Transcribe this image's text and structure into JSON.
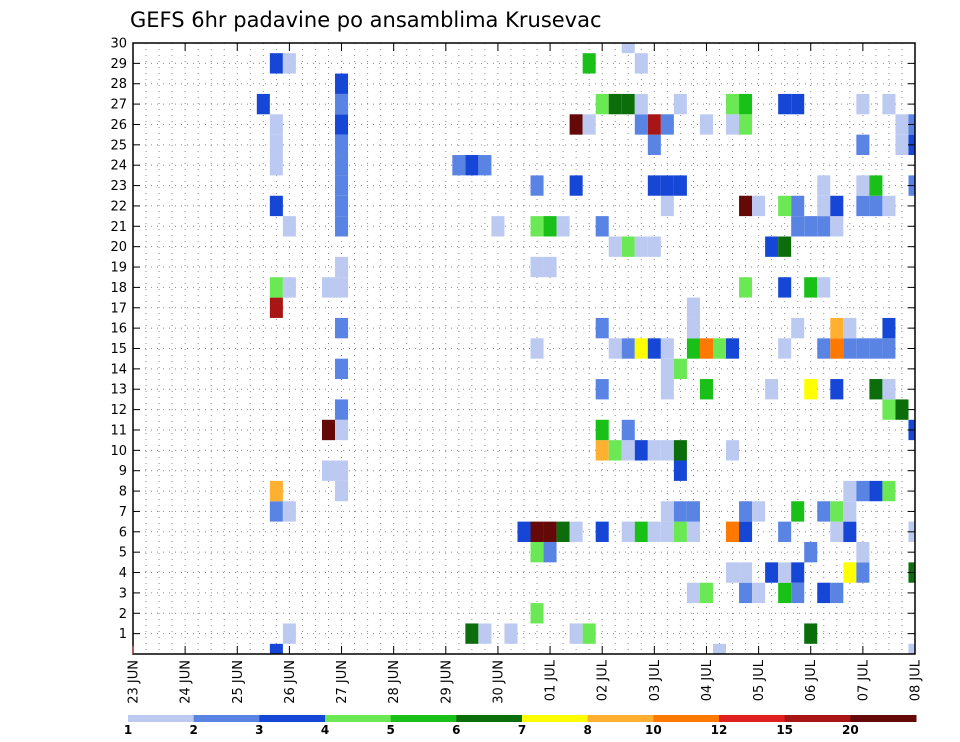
{
  "chart_data": {
    "type": "heatmap",
    "title": "GEFS 6hr padavine po ansamblima Krusevac",
    "xlabel": "",
    "ylabel": "",
    "x_range": [
      0,
      60
    ],
    "y_range": [
      0,
      30
    ],
    "steps_per_day": 4,
    "x_tick_labels": [
      "23 JUN",
      "24 JUN",
      "25 JUN",
      "26 JUN",
      "27 JUN",
      "28 JUN",
      "29 JUN",
      "30 JUN",
      "01 JUL",
      "02 JUL",
      "03 JUL",
      "04 JUL",
      "05 JUL",
      "06 JUL",
      "07 JUL",
      "08 JUL"
    ],
    "y_ticks": [
      1,
      2,
      3,
      4,
      5,
      6,
      7,
      8,
      9,
      10,
      11,
      12,
      13,
      14,
      15,
      16,
      17,
      18,
      19,
      20,
      21,
      22,
      23,
      24,
      25,
      26,
      27,
      28,
      29,
      30
    ],
    "grid": true,
    "legend": {
      "position": "bottom",
      "colors": [
        "#bccaf2",
        "#5a84e4",
        "#1646d6",
        "#6ae954",
        "#18c018",
        "#0b6e0b",
        "#ffff00",
        "#ffb030",
        "#ff7800",
        "#e02020",
        "#a81515",
        "#640808"
      ],
      "labels": [
        "1",
        "2",
        "3",
        "4",
        "5",
        "6",
        "7",
        "8",
        "10",
        "12",
        "15",
        "20"
      ]
    },
    "cells": [
      [
        11,
        0,
        3
      ],
      [
        45,
        0,
        1
      ],
      [
        60,
        0,
        1
      ],
      [
        12,
        1,
        1
      ],
      [
        26,
        1,
        6
      ],
      [
        27,
        1,
        1
      ],
      [
        29,
        1,
        1
      ],
      [
        34,
        1,
        1
      ],
      [
        35,
        1,
        4
      ],
      [
        52,
        1,
        6
      ],
      [
        31,
        2,
        4
      ],
      [
        43,
        3,
        1
      ],
      [
        44,
        3,
        4
      ],
      [
        47,
        3,
        2
      ],
      [
        48,
        3,
        1
      ],
      [
        50,
        3,
        5
      ],
      [
        51,
        3,
        2
      ],
      [
        53,
        3,
        3
      ],
      [
        54,
        3,
        2
      ],
      [
        46,
        4,
        1
      ],
      [
        47,
        4,
        1
      ],
      [
        49,
        4,
        3
      ],
      [
        50,
        4,
        1
      ],
      [
        51,
        4,
        3
      ],
      [
        55,
        4,
        7
      ],
      [
        56,
        4,
        2
      ],
      [
        60,
        4,
        6
      ],
      [
        31,
        5,
        4
      ],
      [
        32,
        5,
        2
      ],
      [
        52,
        5,
        2
      ],
      [
        56,
        5,
        1
      ],
      [
        30,
        6,
        3
      ],
      [
        31,
        6,
        20
      ],
      [
        32,
        6,
        20
      ],
      [
        33,
        6,
        6
      ],
      [
        34,
        6,
        1
      ],
      [
        36,
        6,
        3
      ],
      [
        38,
        6,
        1
      ],
      [
        39,
        6,
        5
      ],
      [
        40,
        6,
        1
      ],
      [
        41,
        6,
        1
      ],
      [
        42,
        6,
        4
      ],
      [
        43,
        6,
        1
      ],
      [
        46,
        6,
        10
      ],
      [
        47,
        6,
        3
      ],
      [
        50,
        6,
        2
      ],
      [
        54,
        6,
        1
      ],
      [
        55,
        6,
        3
      ],
      [
        60,
        6,
        1
      ],
      [
        11,
        7,
        2
      ],
      [
        12,
        7,
        1
      ],
      [
        41,
        7,
        1
      ],
      [
        42,
        7,
        2
      ],
      [
        43,
        7,
        2
      ],
      [
        47,
        7,
        2
      ],
      [
        48,
        7,
        1
      ],
      [
        51,
        7,
        5
      ],
      [
        53,
        7,
        2
      ],
      [
        54,
        7,
        4
      ],
      [
        55,
        7,
        1
      ],
      [
        11,
        8,
        8
      ],
      [
        16,
        8,
        1
      ],
      [
        55,
        8,
        1
      ],
      [
        56,
        8,
        2
      ],
      [
        57,
        8,
        3
      ],
      [
        58,
        8,
        4
      ],
      [
        15,
        9,
        1
      ],
      [
        16,
        9,
        1
      ],
      [
        42,
        9,
        3
      ],
      [
        36,
        10,
        8
      ],
      [
        37,
        10,
        4
      ],
      [
        38,
        10,
        1
      ],
      [
        39,
        10,
        3
      ],
      [
        40,
        10,
        1
      ],
      [
        41,
        10,
        1
      ],
      [
        42,
        10,
        6
      ],
      [
        46,
        10,
        1
      ],
      [
        15,
        11,
        20
      ],
      [
        16,
        11,
        1
      ],
      [
        36,
        11,
        5
      ],
      [
        38,
        11,
        2
      ],
      [
        60,
        11,
        3
      ],
      [
        16,
        12,
        2
      ],
      [
        58,
        12,
        4
      ],
      [
        59,
        12,
        6
      ],
      [
        36,
        13,
        2
      ],
      [
        41,
        13,
        1
      ],
      [
        44,
        13,
        5
      ],
      [
        49,
        13,
        1
      ],
      [
        52,
        13,
        7
      ],
      [
        54,
        13,
        3
      ],
      [
        57,
        13,
        6
      ],
      [
        58,
        13,
        1
      ],
      [
        16,
        14,
        2
      ],
      [
        41,
        14,
        1
      ],
      [
        42,
        14,
        4
      ],
      [
        31,
        15,
        1
      ],
      [
        37,
        15,
        1
      ],
      [
        38,
        15,
        2
      ],
      [
        39,
        15,
        7
      ],
      [
        40,
        15,
        3
      ],
      [
        41,
        15,
        1
      ],
      [
        43,
        15,
        5
      ],
      [
        44,
        15,
        10
      ],
      [
        45,
        15,
        4
      ],
      [
        46,
        15,
        3
      ],
      [
        50,
        15,
        1
      ],
      [
        53,
        15,
        2
      ],
      [
        54,
        15,
        10
      ],
      [
        55,
        15,
        2
      ],
      [
        56,
        15,
        2
      ],
      [
        57,
        15,
        2
      ],
      [
        58,
        15,
        2
      ],
      [
        16,
        16,
        2
      ],
      [
        36,
        16,
        2
      ],
      [
        43,
        16,
        1
      ],
      [
        51,
        16,
        1
      ],
      [
        54,
        16,
        8
      ],
      [
        55,
        16,
        1
      ],
      [
        58,
        16,
        3
      ],
      [
        11,
        17,
        15
      ],
      [
        43,
        17,
        1
      ],
      [
        11,
        18,
        4
      ],
      [
        12,
        18,
        1
      ],
      [
        15,
        18,
        1
      ],
      [
        16,
        18,
        1
      ],
      [
        47,
        18,
        4
      ],
      [
        50,
        18,
        3
      ],
      [
        52,
        18,
        5
      ],
      [
        53,
        18,
        1
      ],
      [
        16,
        19,
        1
      ],
      [
        31,
        19,
        1
      ],
      [
        32,
        19,
        1
      ],
      [
        37,
        20,
        1
      ],
      [
        38,
        20,
        4
      ],
      [
        39,
        20,
        1
      ],
      [
        40,
        20,
        1
      ],
      [
        49,
        20,
        3
      ],
      [
        50,
        20,
        6
      ],
      [
        12,
        21,
        1
      ],
      [
        16,
        21,
        2
      ],
      [
        28,
        21,
        1
      ],
      [
        31,
        21,
        4
      ],
      [
        32,
        21,
        5
      ],
      [
        33,
        21,
        1
      ],
      [
        36,
        21,
        2
      ],
      [
        51,
        21,
        2
      ],
      [
        52,
        21,
        2
      ],
      [
        53,
        21,
        2
      ],
      [
        54,
        21,
        1
      ],
      [
        11,
        22,
        3
      ],
      [
        16,
        22,
        2
      ],
      [
        41,
        22,
        1
      ],
      [
        47,
        22,
        20
      ],
      [
        48,
        22,
        1
      ],
      [
        50,
        22,
        4
      ],
      [
        51,
        22,
        2
      ],
      [
        53,
        22,
        1
      ],
      [
        54,
        22,
        3
      ],
      [
        56,
        22,
        2
      ],
      [
        57,
        22,
        2
      ],
      [
        58,
        22,
        1
      ],
      [
        16,
        23,
        2
      ],
      [
        31,
        23,
        2
      ],
      [
        34,
        23,
        3
      ],
      [
        40,
        23,
        3
      ],
      [
        41,
        23,
        3
      ],
      [
        42,
        23,
        3
      ],
      [
        53,
        23,
        1
      ],
      [
        56,
        23,
        1
      ],
      [
        57,
        23,
        5
      ],
      [
        60,
        23,
        2
      ],
      [
        11,
        24,
        1
      ],
      [
        16,
        24,
        2
      ],
      [
        25,
        24,
        2
      ],
      [
        26,
        24,
        3
      ],
      [
        27,
        24,
        2
      ],
      [
        11,
        25,
        1
      ],
      [
        16,
        25,
        2
      ],
      [
        40,
        25,
        2
      ],
      [
        56,
        25,
        2
      ],
      [
        59,
        25,
        1
      ],
      [
        60,
        25,
        3
      ],
      [
        11,
        26,
        1
      ],
      [
        16,
        26,
        3
      ],
      [
        34,
        26,
        20
      ],
      [
        35,
        26,
        1
      ],
      [
        39,
        26,
        2
      ],
      [
        40,
        26,
        15
      ],
      [
        41,
        26,
        2
      ],
      [
        44,
        26,
        1
      ],
      [
        46,
        26,
        1
      ],
      [
        47,
        26,
        4
      ],
      [
        59,
        26,
        1
      ],
      [
        60,
        26,
        2
      ],
      [
        10,
        27,
        3
      ],
      [
        16,
        27,
        2
      ],
      [
        36,
        27,
        4
      ],
      [
        37,
        27,
        6
      ],
      [
        38,
        27,
        6
      ],
      [
        39,
        27,
        1
      ],
      [
        42,
        27,
        1
      ],
      [
        46,
        27,
        4
      ],
      [
        47,
        27,
        5
      ],
      [
        50,
        27,
        3
      ],
      [
        51,
        27,
        3
      ],
      [
        56,
        27,
        1
      ],
      [
        58,
        27,
        1
      ],
      [
        16,
        28,
        3
      ],
      [
        11,
        29,
        3
      ],
      [
        12,
        29,
        1
      ],
      [
        35,
        29,
        5
      ],
      [
        39,
        29,
        1
      ],
      [
        38,
        30,
        1
      ]
    ]
  }
}
